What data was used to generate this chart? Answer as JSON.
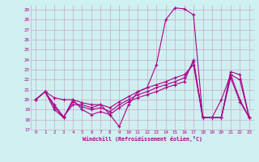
{
  "xlabel": "Windchill (Refroidissement éolien,°C)",
  "background_color": "#cff0f0",
  "grid_color": "#c8a8c8",
  "line_color": "#aa0088",
  "xlim": [
    -0.5,
    23.5
  ],
  "ylim": [
    17,
    29.5
  ],
  "yticks": [
    17,
    18,
    19,
    20,
    21,
    22,
    23,
    24,
    25,
    26,
    27,
    28,
    29
  ],
  "xticks": [
    0,
    1,
    2,
    3,
    4,
    5,
    6,
    7,
    8,
    9,
    10,
    11,
    12,
    13,
    14,
    15,
    16,
    17,
    18,
    19,
    20,
    21,
    22,
    23
  ],
  "line1_x": [
    0,
    1,
    2,
    3,
    4,
    5,
    6,
    7,
    8,
    9,
    10,
    11,
    12,
    13,
    14,
    15,
    16,
    17,
    18,
    19,
    20,
    21,
    22,
    23
  ],
  "line1_y": [
    20.0,
    20.8,
    20.2,
    20.0,
    20.0,
    19.7,
    19.5,
    19.5,
    18.5,
    17.3,
    19.5,
    20.8,
    21.2,
    23.5,
    28.0,
    29.2,
    29.1,
    28.5,
    18.2,
    18.2,
    20.0,
    22.5,
    20.0,
    18.2
  ],
  "line2_x": [
    0,
    1,
    2,
    3,
    4,
    5,
    6,
    7,
    8,
    9,
    10,
    11,
    12,
    13,
    14,
    15,
    16,
    17,
    18,
    19,
    20,
    21,
    22,
    23
  ],
  "line2_y": [
    20.0,
    20.8,
    19.5,
    18.3,
    19.5,
    19.5,
    19.2,
    19.5,
    19.2,
    19.8,
    20.3,
    20.8,
    21.2,
    21.5,
    21.8,
    22.2,
    22.5,
    23.5,
    18.2,
    18.2,
    18.2,
    22.8,
    22.5,
    18.2
  ],
  "line3_x": [
    0,
    1,
    2,
    3,
    4,
    5,
    6,
    7,
    8,
    9,
    10,
    11,
    12,
    13,
    14,
    15,
    16,
    17,
    18,
    19,
    20,
    21,
    22,
    23
  ],
  "line3_y": [
    20.0,
    20.8,
    19.3,
    18.2,
    19.8,
    19.3,
    19.0,
    19.2,
    18.8,
    19.5,
    20.0,
    20.5,
    20.8,
    21.2,
    21.5,
    21.8,
    22.2,
    23.8,
    18.2,
    18.2,
    18.2,
    22.5,
    22.0,
    18.2
  ],
  "line4_x": [
    0,
    1,
    2,
    3,
    4,
    5,
    6,
    7,
    8,
    9,
    10,
    11,
    12,
    13,
    14,
    15,
    16,
    17,
    18,
    19,
    20,
    21,
    22,
    23
  ],
  "line4_y": [
    20.0,
    20.8,
    19.0,
    18.2,
    20.0,
    19.0,
    18.5,
    18.8,
    18.5,
    19.2,
    19.8,
    20.2,
    20.5,
    20.8,
    21.2,
    21.5,
    21.8,
    24.0,
    18.2,
    18.2,
    18.2,
    22.2,
    19.8,
    18.2
  ]
}
